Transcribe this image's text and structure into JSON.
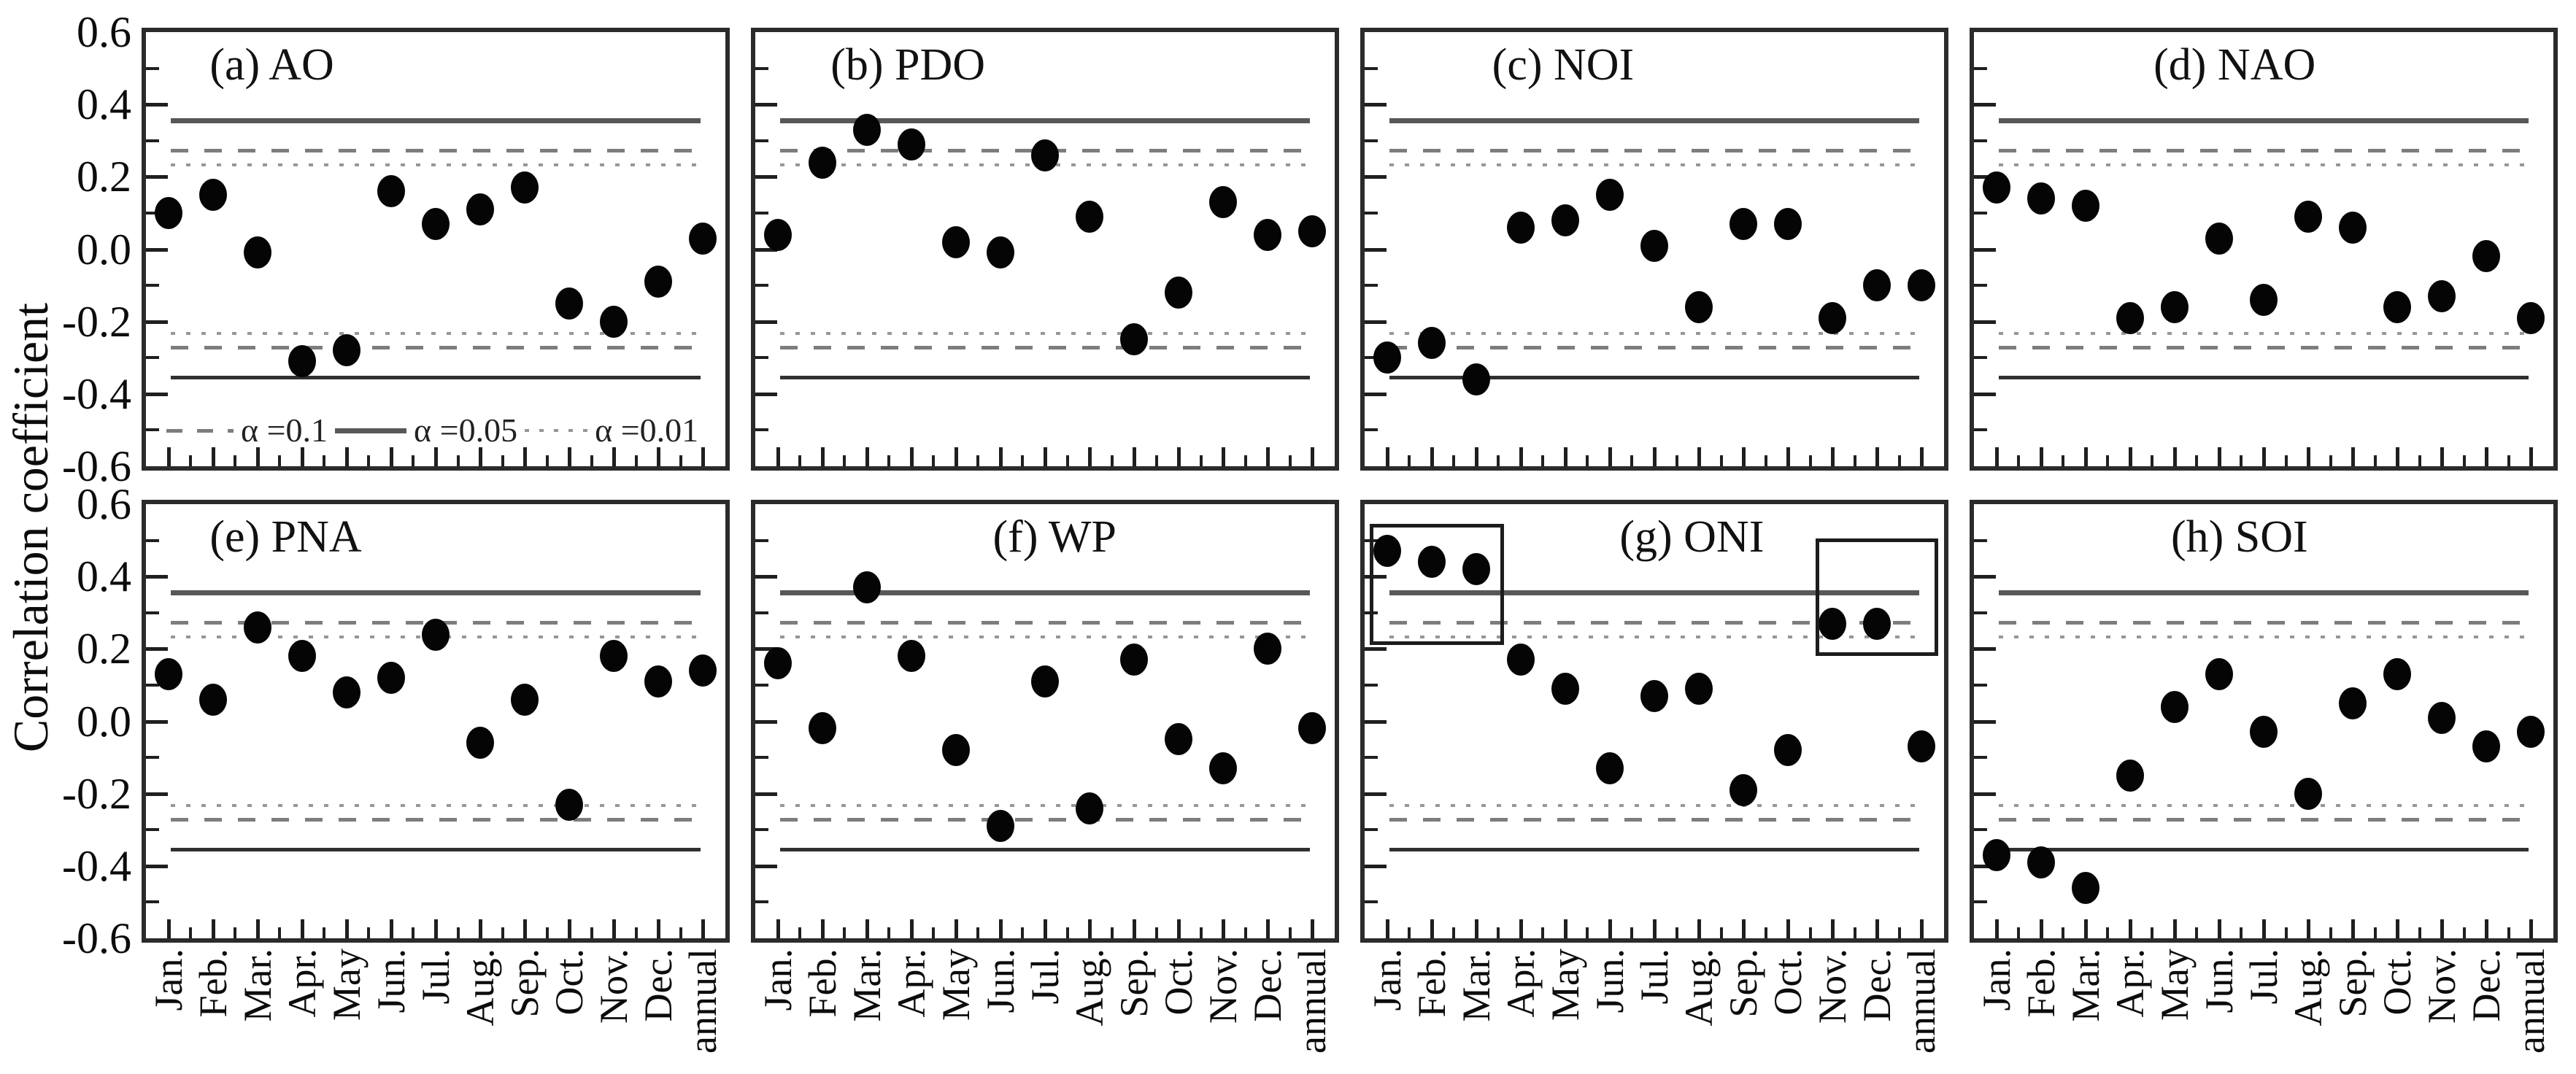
{
  "figure": {
    "ylabel": "Correlation coefficient",
    "y_tick_labels": [
      "0.6",
      "0.4",
      "0.2",
      "0.0",
      "-0.2",
      "-0.4",
      "-0.6"
    ],
    "colors": {
      "dot": "#050505",
      "solid_line_upper": "#585858",
      "solid_line_lower": "#303030",
      "dashed_line": "#7d7d7d",
      "dotted_line": "#979797",
      "panel_border": "#2b2b2b",
      "background": "#ffffff"
    },
    "legend": [
      {
        "style": "dashed",
        "label": "α =0.1"
      },
      {
        "style": "solid",
        "label": "α =0.05"
      },
      {
        "style": "dotted",
        "label": "α =0.01"
      }
    ]
  },
  "chart_data": {
    "type": "scatter",
    "categories": [
      "Jan.",
      "Feb.",
      "Mar.",
      "Apr.",
      "May",
      "Jun.",
      "Jul.",
      "Aug.",
      "Sep.",
      "Oct.",
      "Nov.",
      "Dec.",
      "annual"
    ],
    "ylim": [
      -0.6,
      0.6
    ],
    "y_tick_step": 0.2,
    "ylabel": "Correlation coefficient",
    "grid": false,
    "legend_position": "inside panel (a), bottom",
    "significance_lines": [
      {
        "label": "α =0.1",
        "style": "dashed",
        "values": [
          0.272,
          -0.272
        ]
      },
      {
        "label": "α =0.05",
        "style": "solid",
        "values": [
          0.355,
          -0.355
        ]
      },
      {
        "label": "α =0.01",
        "style": "dotted",
        "values": [
          0.232,
          -0.232
        ]
      }
    ],
    "panels": [
      {
        "id": "a",
        "title": "(a) AO",
        "title_x_pct": 11,
        "values": [
          0.1,
          0.15,
          -0.01,
          -0.31,
          -0.28,
          0.16,
          0.07,
          0.11,
          0.17,
          -0.15,
          -0.2,
          -0.09,
          0.03
        ],
        "has_legend": true
      },
      {
        "id": "b",
        "title": "(b) PDO",
        "title_x_pct": 13,
        "values": [
          0.04,
          0.24,
          0.33,
          0.29,
          0.02,
          -0.01,
          0.26,
          0.09,
          -0.25,
          -0.12,
          0.13,
          0.04,
          0.05
        ]
      },
      {
        "id": "c",
        "title": "(c) NOI",
        "title_x_pct": 22,
        "values": [
          -0.3,
          -0.26,
          -0.36,
          0.06,
          0.08,
          0.15,
          0.01,
          -0.16,
          0.07,
          0.07,
          -0.19,
          -0.1,
          -0.1
        ]
      },
      {
        "id": "d",
        "title": "(d) NAO",
        "title_x_pct": 31,
        "values": [
          0.17,
          0.14,
          0.12,
          -0.19,
          -0.16,
          0.03,
          -0.14,
          0.09,
          0.06,
          -0.16,
          -0.13,
          -0.02,
          -0.19
        ]
      },
      {
        "id": "e",
        "title": "(e) PNA",
        "title_x_pct": 11,
        "values": [
          0.13,
          0.06,
          0.26,
          0.18,
          0.08,
          0.12,
          0.24,
          -0.06,
          0.06,
          -0.23,
          0.18,
          0.11,
          0.14
        ]
      },
      {
        "id": "f",
        "title": "(f) WP",
        "title_x_pct": 41,
        "values": [
          0.16,
          -0.02,
          0.37,
          0.18,
          -0.08,
          -0.29,
          0.11,
          -0.24,
          0.17,
          -0.05,
          -0.13,
          0.2,
          -0.02
        ]
      },
      {
        "id": "g",
        "title": "(g) ONI",
        "title_x_pct": 44,
        "values": [
          0.47,
          0.44,
          0.42,
          0.17,
          0.09,
          -0.13,
          0.07,
          0.09,
          -0.19,
          -0.08,
          0.27,
          0.27,
          -0.07
        ],
        "highlight_boxes": [
          {
            "x_from": -0.38,
            "x_to": 2.62,
            "y_from": 0.21,
            "y_to": 0.545
          },
          {
            "x_from": 9.62,
            "x_to": 12.73,
            "y_from": 0.18,
            "y_to": 0.505
          }
        ]
      },
      {
        "id": "h",
        "title": "(h) SOI",
        "title_x_pct": 34,
        "values": [
          -0.37,
          -0.39,
          -0.46,
          -0.15,
          0.04,
          0.13,
          -0.03,
          -0.2,
          0.05,
          0.13,
          0.01,
          -0.07,
          -0.03
        ]
      }
    ]
  }
}
